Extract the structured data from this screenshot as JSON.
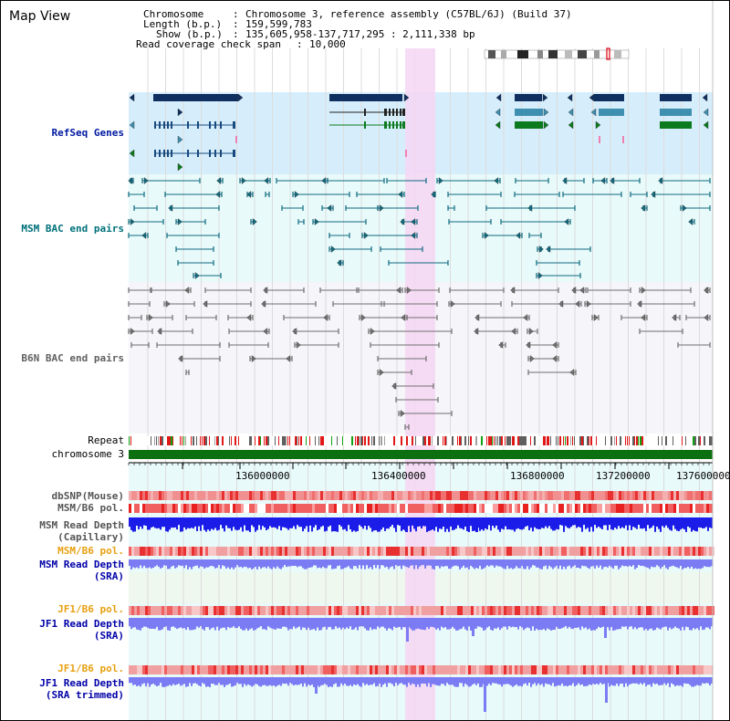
{
  "app_title": "Map View",
  "header": {
    "chromosome_label": "Chromosome",
    "chromosome_value": "Chromosome 3, reference assembly (C57BL/6J) (Build 37)",
    "length_label": "Length (b.p.)",
    "length_value": "159,599,783",
    "show_label": "Show (b.p.)",
    "show_value": "135,605,958-137,717,295 : 2,111,338 bp",
    "coverage_label": "Read coverage check span",
    "coverage_value": "10,000"
  },
  "tracks": {
    "refseq": "RefSeq Genes",
    "msm_bac": "MSM BAC end pairs",
    "b6n_bac": "B6N BAC end pairs",
    "repeat": "Repeat",
    "chromosome": "chromosome 3",
    "dbsnp": "dbSNP(Mouse)",
    "msm_pol": "MSM/B6 pol.",
    "msm_depth_cap_1": "MSM Read Depth",
    "msm_depth_cap_2": "(Capillary)",
    "msm_pol_sra": "MSM/B6 pol.",
    "msm_depth_sra_1": "MSM Read Depth",
    "msm_depth_sra_2": "(SRA)",
    "jf1_pol": "JF1/B6 pol.",
    "jf1_depth_1": "JF1 Read Depth",
    "jf1_depth_2": "(SRA)",
    "jf1_pol_trim": "JF1/B6 pol.",
    "jf1_trim_1": "JF1 Read Depth",
    "jf1_trim_2": "(SRA trimmed)"
  },
  "axis": {
    "ticks": [
      "136000000",
      "136400000",
      "136800000",
      "137200000",
      "137600000"
    ]
  },
  "colors": {
    "refseq_bg": "#d6eefb",
    "msm_bg": "#e8fafa",
    "b6n_bg": "#f5f5fa",
    "highlight": "#f6d6f3",
    "gene_dark": "#0f2f60",
    "gene_teal": "#3f8fb0",
    "gene_green": "#0c7a1e",
    "msm_bac": "#0f6a80",
    "b6n_bac": "#707070",
    "chromosome_bar": "#0c7010",
    "depth_cap": "#1c1ce8",
    "depth_sra": "#7b7bf4",
    "pol_label": "#e8a010",
    "depth_label": "#0000a8",
    "refseq_label": "#0018a0",
    "msm_label": "#00707a",
    "b6n_label": "#606060"
  }
}
